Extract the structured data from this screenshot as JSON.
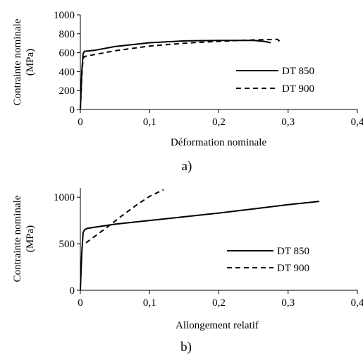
{
  "chart_data": [
    {
      "type": "line",
      "panel_label": "a)",
      "xlabel": "Déformation nominale",
      "ylabel": "Contrainte nominale (MPa)",
      "ylabel_lines": [
        "Contrainte nominale",
        "(MPa)"
      ],
      "xlim": [
        0,
        0.4
      ],
      "ylim": [
        0,
        1000
      ],
      "xticks": [
        0,
        0.1,
        0.2,
        0.3,
        0.4
      ],
      "yticks": [
        0,
        200,
        400,
        600,
        800,
        1000
      ],
      "xtick_labels": [
        "0",
        "0,1",
        "0,2",
        "0,3",
        "0,4"
      ],
      "ytick_labels": [
        "0",
        "200",
        "400",
        "600",
        "800",
        "1000"
      ],
      "grid": false,
      "legend_position": "right",
      "series": [
        {
          "name": "DT 850",
          "style": "solid",
          "x": [
            0,
            0.002,
            0.004,
            0.006,
            0.02,
            0.05,
            0.1,
            0.15,
            0.2,
            0.25,
            0.265,
            0.275
          ],
          "y": [
            0,
            400,
            590,
            615,
            625,
            665,
            705,
            725,
            730,
            730,
            720,
            705
          ]
        },
        {
          "name": "DT 900",
          "style": "dashed",
          "x": [
            0,
            0.002,
            0.004,
            0.006,
            0.02,
            0.05,
            0.1,
            0.15,
            0.2,
            0.25,
            0.28,
            0.285,
            0.29
          ],
          "y": [
            0,
            350,
            540,
            560,
            580,
            620,
            670,
            700,
            720,
            735,
            740,
            740,
            700
          ]
        }
      ]
    },
    {
      "type": "line",
      "panel_label": "b)",
      "xlabel": "Allongement relatif",
      "ylabel": "Contrainte nominale (MPa)",
      "ylabel_lines": [
        "Contrainte nominale",
        "(MPa)"
      ],
      "xlim": [
        0,
        0.4
      ],
      "ylim": [
        0,
        1100
      ],
      "xticks": [
        0,
        0.1,
        0.2,
        0.3,
        0.4
      ],
      "yticks": [
        0,
        500,
        1000
      ],
      "xtick_labels": [
        "0",
        "0,1",
        "0,2",
        "0,3",
        "0,4"
      ],
      "ytick_labels": [
        "0",
        "500",
        "1000"
      ],
      "grid": false,
      "legend_position": "right",
      "series": [
        {
          "name": "DT 850",
          "style": "solid",
          "x": [
            0,
            0.002,
            0.004,
            0.006,
            0.01,
            0.05,
            0.1,
            0.15,
            0.2,
            0.25,
            0.3,
            0.345
          ],
          "y": [
            0,
            400,
            620,
            650,
            665,
            710,
            750,
            790,
            830,
            875,
            920,
            955
          ]
        },
        {
          "name": "DT 900",
          "style": "dashed",
          "x": [
            0.008,
            0.02,
            0.04,
            0.06,
            0.08,
            0.1,
            0.12
          ],
          "y": [
            510,
            575,
            685,
            800,
            910,
            1010,
            1080
          ]
        }
      ]
    }
  ]
}
